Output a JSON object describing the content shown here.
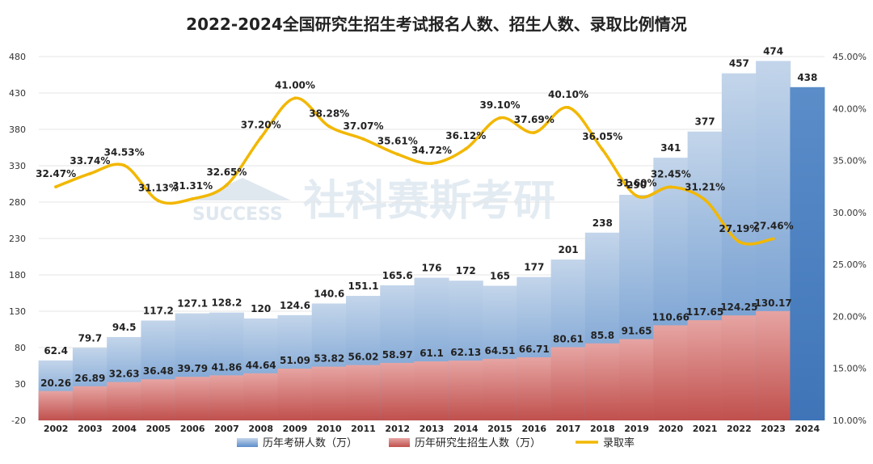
{
  "chart_data": {
    "type": "bar",
    "title": "2022-2024全国研究生招生考试报名人数、招生人数、录取比例情况",
    "categories": [
      "2002",
      "2003",
      "2004",
      "2005",
      "2006",
      "2007",
      "2008",
      "2009",
      "2010",
      "2011",
      "2012",
      "2013",
      "2014",
      "2015",
      "2016",
      "2017",
      "2018",
      "2019",
      "2020",
      "2021",
      "2022",
      "2023",
      "2024"
    ],
    "ylim": [
      -20,
      480
    ],
    "y_ticks": [
      "480",
      "430",
      "380",
      "330",
      "280",
      "230",
      "180",
      "130",
      "80",
      "30",
      "-20"
    ],
    "y2lim": [
      10,
      45
    ],
    "y2_ticks": [
      "45.00%",
      "40.00%",
      "35.00%",
      "30.00%",
      "25.00%",
      "20.00%",
      "15.00%",
      "10.00%"
    ],
    "grid": true,
    "legend_position": "bottom",
    "series": [
      {
        "name": "历年考研人数（万）",
        "kind": "bar",
        "color": "#5B8DC9",
        "values": [
          62.4,
          79.7,
          94.5,
          117.2,
          127.1,
          128.2,
          120,
          124.6,
          140.6,
          151.1,
          165.6,
          176,
          172,
          165,
          177,
          201,
          238,
          290,
          341,
          377,
          457,
          474,
          438
        ],
        "labels": [
          "62.4",
          "79.7",
          "94.5",
          "117.2",
          "127.1",
          "128.2",
          "120",
          "124.6",
          "140.6",
          "151.1",
          "165.6",
          "176",
          "172",
          "165",
          "177",
          "201",
          "238",
          "290",
          "341",
          "377",
          "457",
          "474",
          "438"
        ]
      },
      {
        "name": "历年研究生招生人数（万）",
        "kind": "bar",
        "color": "#C0504D",
        "values": [
          20.26,
          26.89,
          32.63,
          36.48,
          39.79,
          41.86,
          44.64,
          51.09,
          53.82,
          56.02,
          58.97,
          61.1,
          62.13,
          64.51,
          66.71,
          80.61,
          85.8,
          91.65,
          110.66,
          117.65,
          124.25,
          130.17,
          null
        ],
        "labels": [
          "20.26",
          "26.89",
          "32.63",
          "36.48",
          "39.79",
          "41.86",
          "44.64",
          "51.09",
          "53.82",
          "56.02",
          "58.97",
          "61.1",
          "62.13",
          "64.51",
          "66.71",
          "80.61",
          "85.8",
          "91.65",
          "110.66",
          "117.65",
          "124.25",
          "130.17",
          ""
        ]
      },
      {
        "name": "录取率",
        "kind": "line",
        "axis": "right",
        "color": "#F2B700",
        "values": [
          32.47,
          33.74,
          34.53,
          31.13,
          31.31,
          32.65,
          37.2,
          41.0,
          38.28,
          37.07,
          35.61,
          34.72,
          36.12,
          39.1,
          37.69,
          40.1,
          36.05,
          31.6,
          32.45,
          31.21,
          27.19,
          27.46,
          null
        ],
        "labels": [
          "32.47%",
          "33.74%",
          "34.53%",
          "31.13%",
          "31.31%",
          "32.65%",
          "37.20%",
          "41.00%",
          "38.28%",
          "37.07%",
          "35.61%",
          "34.72%",
          "36.12%",
          "39.10%",
          "37.69%",
          "40.10%",
          "36.05%",
          "31.60%",
          "32.45%",
          "31.21%",
          "27.19%",
          "27.46%",
          ""
        ]
      }
    ]
  },
  "watermark": {
    "brand": "SUCCESS",
    "text": "社科赛斯考研"
  }
}
